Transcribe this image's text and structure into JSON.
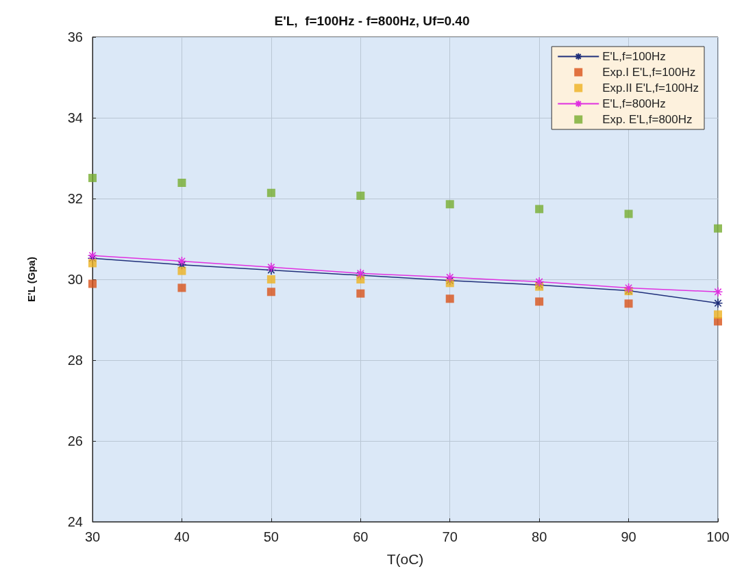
{
  "chart_data": {
    "type": "line",
    "title": "E'L,  f=100Hz - f=800Hz, Uf=0.40",
    "xlabel": "T(oC)",
    "ylabel": "E'L (Gpa)",
    "x": [
      30,
      40,
      50,
      60,
      70,
      80,
      90,
      100
    ],
    "series": [
      {
        "name": "E'L,f=100Hz",
        "type": "line",
        "marker": "cross",
        "line_style": "solid",
        "color": "#1f2f7a",
        "values": [
          30.52,
          30.36,
          30.23,
          30.1,
          29.97,
          29.86,
          29.72,
          29.41
        ]
      },
      {
        "name": "Exp.I E'L,f=100Hz",
        "type": "scatter",
        "marker": "square",
        "color": "#d95319",
        "values": [
          29.89,
          29.79,
          29.69,
          29.65,
          29.52,
          29.45,
          29.4,
          28.96
        ]
      },
      {
        "name": "Exp.II E'L,f=100Hz",
        "type": "scatter",
        "marker": "square",
        "color": "#edb120",
        "values": [
          30.4,
          30.21,
          30.0,
          30.0,
          29.91,
          29.82,
          29.71,
          29.13
        ]
      },
      {
        "name": "E'L,f=800Hz",
        "type": "line",
        "marker": "cross",
        "line_style": "solid",
        "color": "#e030e0",
        "values": [
          30.59,
          30.45,
          30.3,
          30.15,
          30.05,
          29.94,
          29.79,
          29.69
        ]
      },
      {
        "name": "Exp. E'L,f=800Hz",
        "type": "scatter",
        "marker": "square",
        "color": "#77ac30",
        "values": [
          32.51,
          32.39,
          32.14,
          32.07,
          31.86,
          31.74,
          31.62,
          31.26
        ]
      }
    ],
    "xlim": [
      30,
      100
    ],
    "xticks": [
      30,
      40,
      50,
      60,
      70,
      80,
      90,
      100
    ],
    "ylim": [
      24,
      36
    ],
    "yticks": [
      24,
      26,
      28,
      30,
      32,
      34,
      36
    ],
    "grid": true,
    "legend": "top right"
  }
}
